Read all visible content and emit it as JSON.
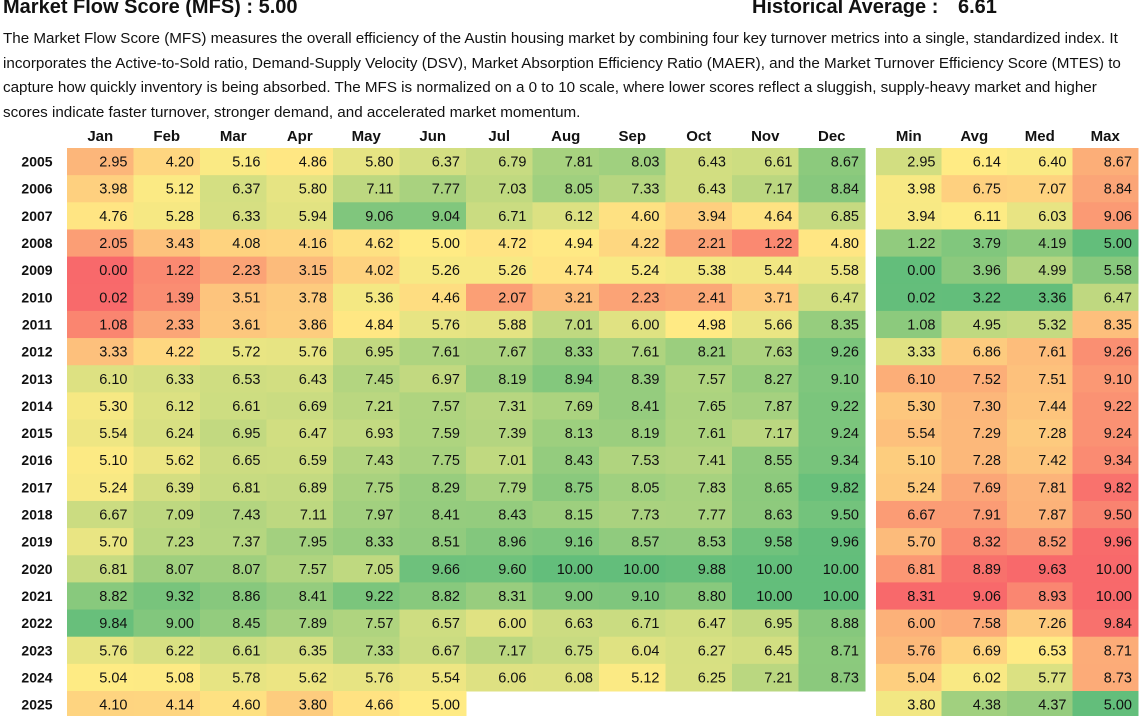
{
  "header": {
    "title": "Market Flow Score (MFS) : 5.00",
    "historical_label": "Historical Average :",
    "historical_value": "6.61"
  },
  "description": "The Market Flow Score (MFS) measures the overall efficiency of the Austin housing market by combining four key turnover metrics into a single, standardized index. It incorporates the Active-to-Sold ratio, Demand-Supply Velocity (DSV), Market Absorption Efficiency Ratio (MAER), and the Market Turnover Efficiency Score (MTES) to capture how quickly inventory is being absorbed. The MFS is normalized on a 0 to 10 scale, where lower scores reflect a sluggish, supply-heavy market and higher scores indicate faster turnover, stronger demand, and accelerated market momentum.",
  "colors": {
    "low": "#f8696b",
    "mid": "#ffeb84",
    "high": "#63be7b"
  },
  "chart_data": {
    "type": "heatmap",
    "months": [
      "Jan",
      "Feb",
      "Mar",
      "Apr",
      "May",
      "Jun",
      "Jul",
      "Aug",
      "Sep",
      "Oct",
      "Nov",
      "Dec"
    ],
    "stat_columns": [
      "Min",
      "Avg",
      "Med",
      "Max"
    ],
    "value_range": [
      0,
      10
    ],
    "rows": [
      {
        "year": "2005",
        "values": [
          2.95,
          4.2,
          5.16,
          4.86,
          5.8,
          6.37,
          6.79,
          7.81,
          8.03,
          6.43,
          6.61,
          8.67
        ],
        "stats": [
          2.95,
          6.14,
          6.4,
          8.67
        ]
      },
      {
        "year": "2006",
        "values": [
          3.98,
          5.12,
          6.37,
          5.8,
          7.11,
          7.77,
          7.03,
          8.05,
          7.33,
          6.43,
          7.17,
          8.84
        ],
        "stats": [
          3.98,
          6.75,
          7.07,
          8.84
        ]
      },
      {
        "year": "2007",
        "values": [
          4.76,
          5.28,
          6.33,
          5.94,
          9.06,
          9.04,
          6.71,
          6.12,
          4.6,
          3.94,
          4.64,
          6.85
        ],
        "stats": [
          3.94,
          6.11,
          6.03,
          9.06
        ]
      },
      {
        "year": "2008",
        "values": [
          2.05,
          3.43,
          4.08,
          4.16,
          4.62,
          5.0,
          4.72,
          4.94,
          4.22,
          2.21,
          1.22,
          4.8
        ],
        "stats": [
          1.22,
          3.79,
          4.19,
          5.0
        ]
      },
      {
        "year": "2009",
        "values": [
          0.0,
          1.22,
          2.23,
          3.15,
          4.02,
          5.26,
          5.26,
          4.74,
          5.24,
          5.38,
          5.44,
          5.58
        ],
        "stats": [
          0.0,
          3.96,
          4.99,
          5.58
        ]
      },
      {
        "year": "2010",
        "values": [
          0.02,
          1.39,
          3.51,
          3.78,
          5.36,
          4.46,
          2.07,
          3.21,
          2.23,
          2.41,
          3.71,
          6.47
        ],
        "stats": [
          0.02,
          3.22,
          3.36,
          6.47
        ]
      },
      {
        "year": "2011",
        "values": [
          1.08,
          2.33,
          3.61,
          3.86,
          4.84,
          5.76,
          5.88,
          7.01,
          6.0,
          4.98,
          5.66,
          8.35
        ],
        "stats": [
          1.08,
          4.95,
          5.32,
          8.35
        ]
      },
      {
        "year": "2012",
        "values": [
          3.33,
          4.22,
          5.72,
          5.76,
          6.95,
          7.61,
          7.67,
          8.33,
          7.61,
          8.21,
          7.63,
          9.26
        ],
        "stats": [
          3.33,
          6.86,
          7.61,
          9.26
        ]
      },
      {
        "year": "2013",
        "values": [
          6.1,
          6.33,
          6.53,
          6.43,
          7.45,
          6.97,
          8.19,
          8.94,
          8.39,
          7.57,
          8.27,
          9.1
        ],
        "stats": [
          6.1,
          7.52,
          7.51,
          9.1
        ]
      },
      {
        "year": "2014",
        "values": [
          5.3,
          6.12,
          6.61,
          6.69,
          7.21,
          7.57,
          7.31,
          7.69,
          8.41,
          7.65,
          7.87,
          9.22
        ],
        "stats": [
          5.3,
          7.3,
          7.44,
          9.22
        ]
      },
      {
        "year": "2015",
        "values": [
          5.54,
          6.24,
          6.95,
          6.47,
          6.93,
          7.59,
          7.39,
          8.13,
          8.19,
          7.61,
          7.17,
          9.24
        ],
        "stats": [
          5.54,
          7.29,
          7.28,
          9.24
        ]
      },
      {
        "year": "2016",
        "values": [
          5.1,
          5.62,
          6.65,
          6.59,
          7.43,
          7.75,
          7.01,
          8.43,
          7.53,
          7.41,
          8.55,
          9.34
        ],
        "stats": [
          5.1,
          7.28,
          7.42,
          9.34
        ]
      },
      {
        "year": "2017",
        "values": [
          5.24,
          6.39,
          6.81,
          6.89,
          7.75,
          8.29,
          7.79,
          8.75,
          8.05,
          7.83,
          8.65,
          9.82
        ],
        "stats": [
          5.24,
          7.69,
          7.81,
          9.82
        ]
      },
      {
        "year": "2018",
        "values": [
          6.67,
          7.09,
          7.43,
          7.11,
          7.97,
          8.41,
          8.43,
          8.15,
          7.73,
          7.77,
          8.63,
          9.5
        ],
        "stats": [
          6.67,
          7.91,
          7.87,
          9.5
        ]
      },
      {
        "year": "2019",
        "values": [
          5.7,
          7.23,
          7.37,
          7.95,
          8.33,
          8.51,
          8.96,
          9.16,
          8.57,
          8.53,
          9.58,
          9.96
        ],
        "stats": [
          5.7,
          8.32,
          8.52,
          9.96
        ]
      },
      {
        "year": "2020",
        "values": [
          6.81,
          8.07,
          8.07,
          7.57,
          7.05,
          9.66,
          9.6,
          10.0,
          10.0,
          9.88,
          10.0,
          10.0
        ],
        "stats": [
          6.81,
          8.89,
          9.63,
          10.0
        ]
      },
      {
        "year": "2021",
        "values": [
          8.82,
          9.32,
          8.86,
          8.41,
          9.22,
          8.82,
          8.31,
          9.0,
          9.1,
          8.8,
          10.0,
          10.0
        ],
        "stats": [
          8.31,
          9.06,
          8.93,
          10.0
        ]
      },
      {
        "year": "2022",
        "values": [
          9.84,
          9.0,
          8.45,
          7.89,
          7.57,
          6.57,
          6.0,
          6.63,
          6.71,
          6.47,
          6.95,
          8.88
        ],
        "stats": [
          6.0,
          7.58,
          7.26,
          9.84
        ]
      },
      {
        "year": "2023",
        "values": [
          5.76,
          6.22,
          6.61,
          6.35,
          7.33,
          6.67,
          7.17,
          6.75,
          6.04,
          6.27,
          6.45,
          8.71
        ],
        "stats": [
          5.76,
          6.69,
          6.53,
          8.71
        ]
      },
      {
        "year": "2024",
        "values": [
          5.04,
          5.08,
          5.78,
          5.62,
          5.76,
          5.54,
          6.06,
          6.08,
          5.12,
          6.25,
          7.21,
          8.73
        ],
        "stats": [
          5.04,
          6.02,
          5.77,
          8.73
        ]
      },
      {
        "year": "2025",
        "values": [
          4.1,
          4.14,
          4.6,
          3.8,
          4.66,
          5.0,
          null,
          null,
          null,
          null,
          null,
          null
        ],
        "stats": [
          3.8,
          4.38,
          4.37,
          5.0
        ]
      }
    ]
  }
}
